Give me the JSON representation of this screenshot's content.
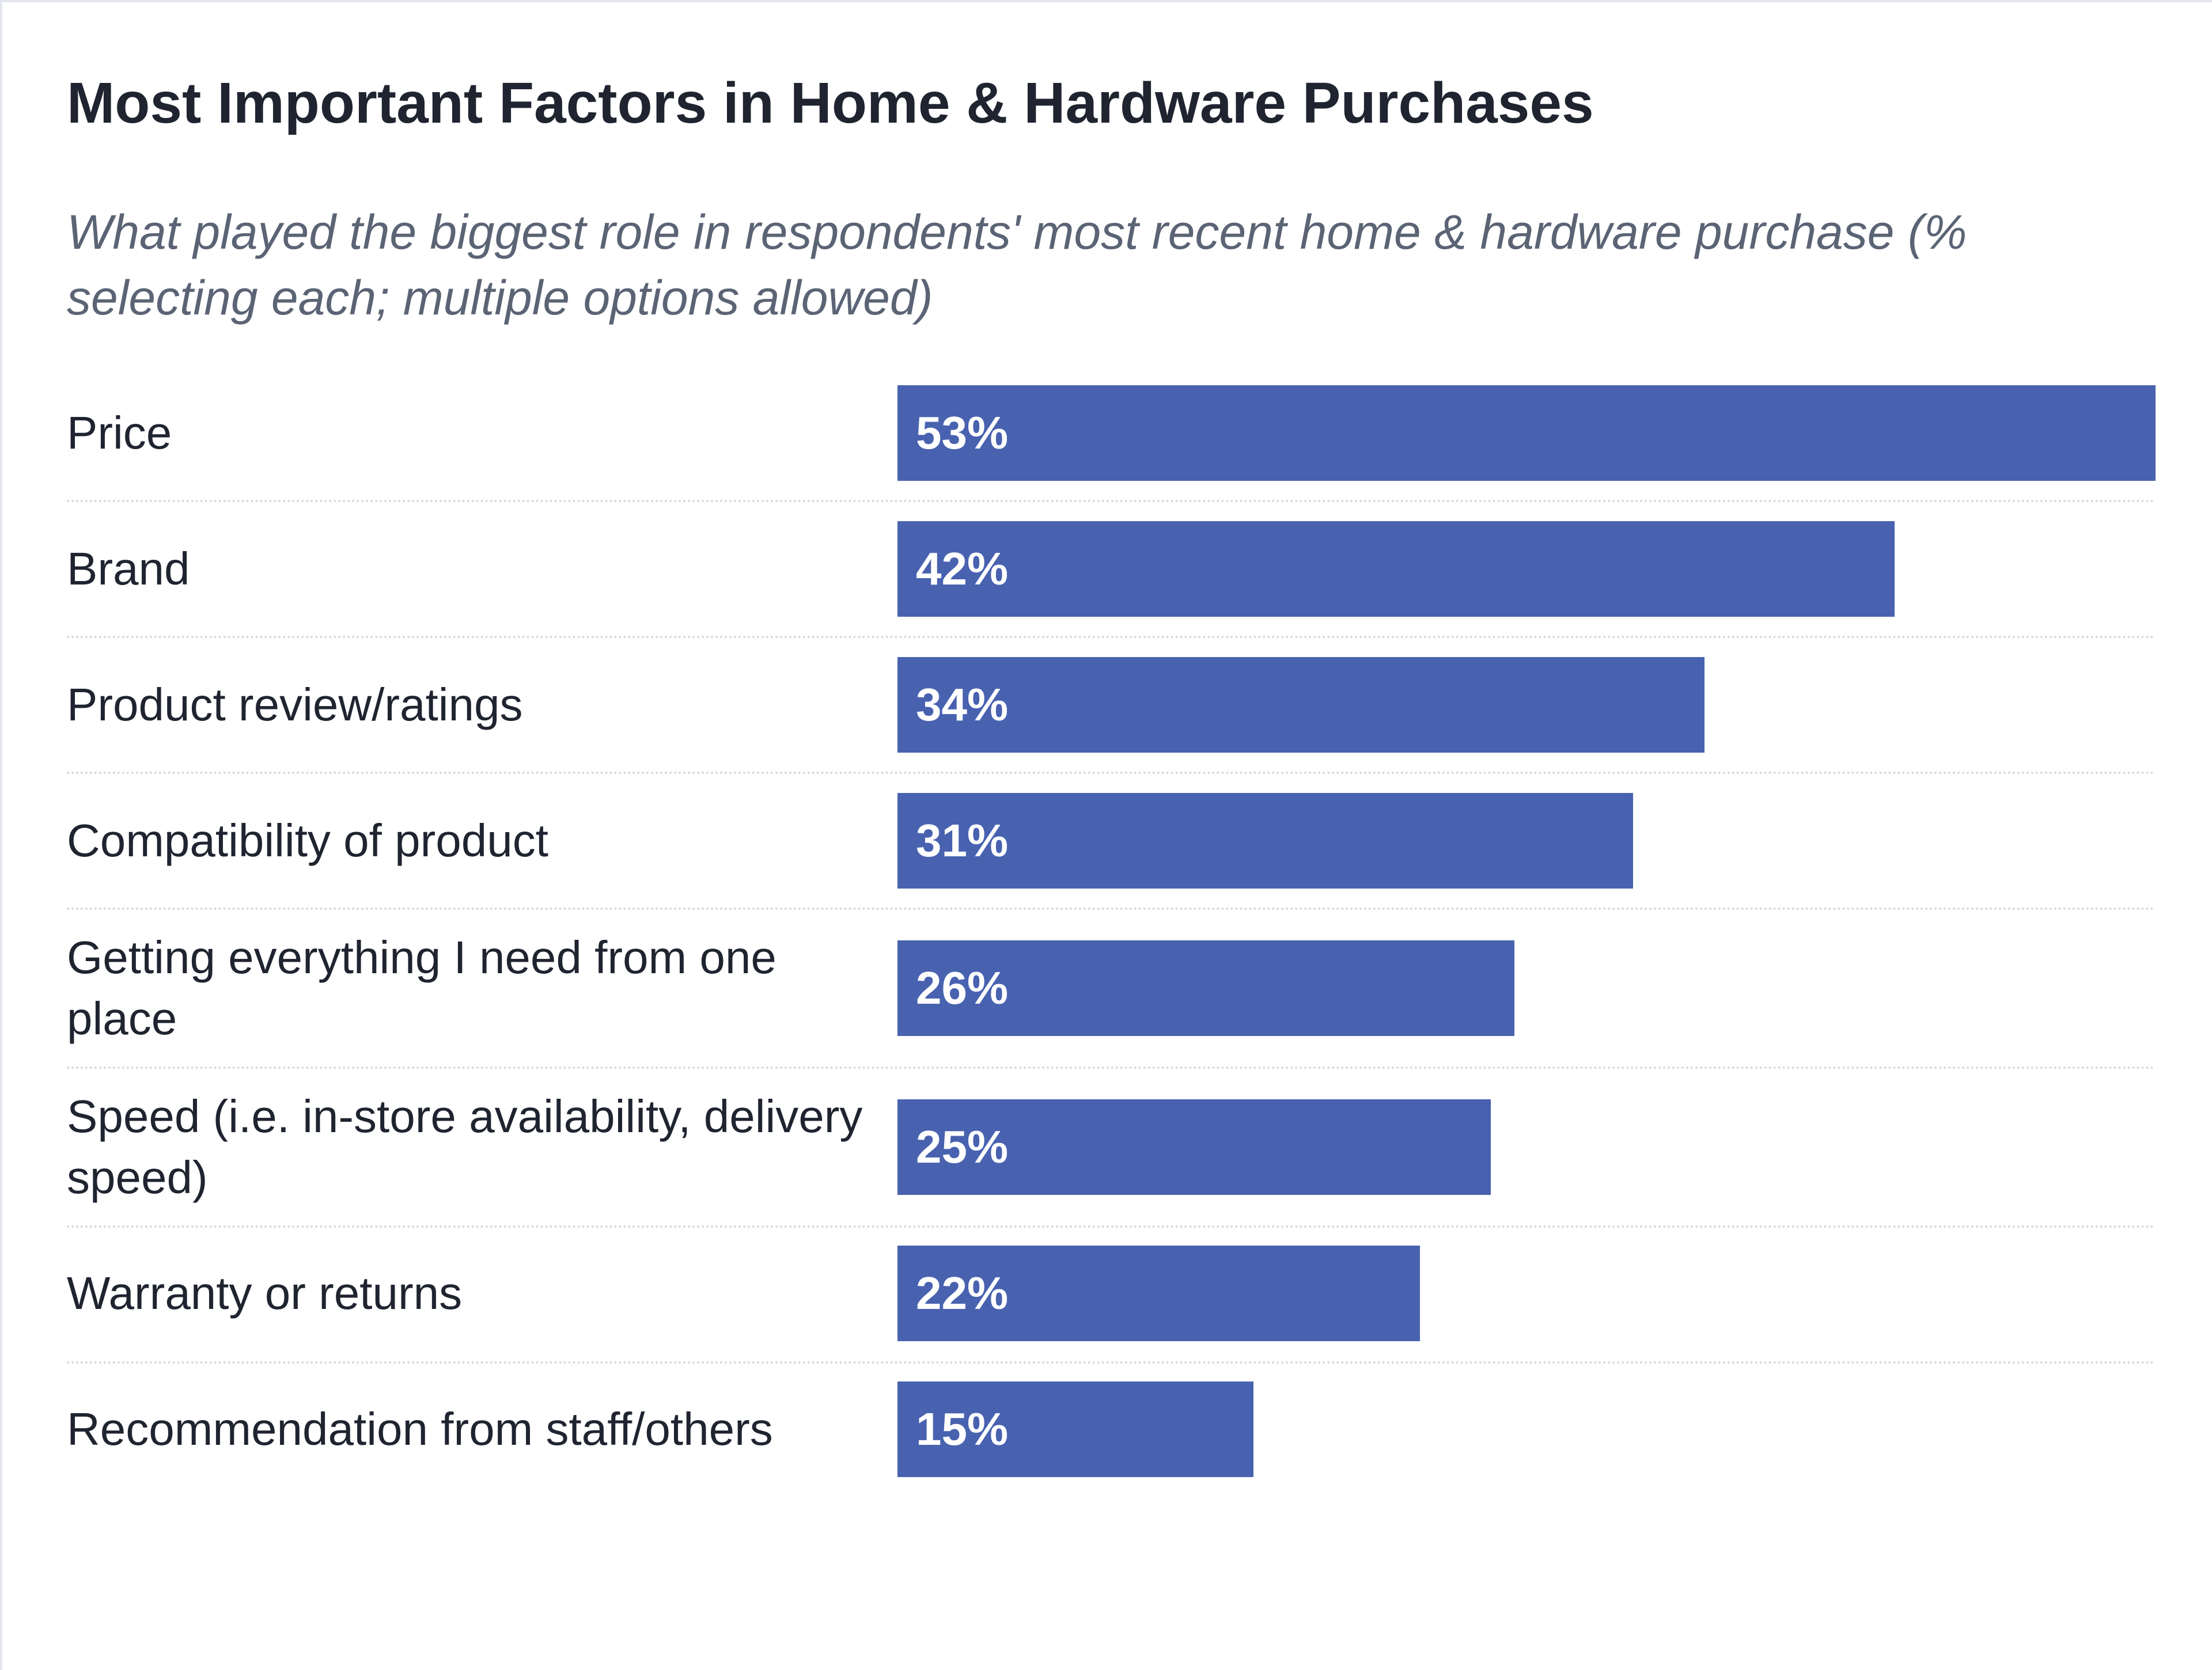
{
  "header": {
    "title": "Most Important Factors in Home & Hardware Purchases",
    "subtitle": "What played the biggest role in respondents' most recent home & hardware purchase (% selecting each; multiple options allowed)"
  },
  "colors": {
    "bar": "#4862b0",
    "bar_text": "#ffffff",
    "title": "#1f2430",
    "subtitle": "#5b6475",
    "divider": "#d6d9e0"
  },
  "chart_data": {
    "type": "bar",
    "orientation": "horizontal",
    "title": "Most Important Factors in Home & Hardware Purchases",
    "subtitle": "What played the biggest role in respondents' most recent home & hardware purchase (% selecting each; multiple options allowed)",
    "categories": [
      "Price",
      "Brand",
      "Product review/ratings",
      "Compatibility of product",
      "Getting everything I need from one place",
      "Speed (i.e. in-store availability, delivery speed)",
      "Warranty or returns",
      "Recommendation from staff/others"
    ],
    "values": [
      53,
      42,
      34,
      31,
      26,
      25,
      22,
      15
    ],
    "value_labels": [
      "53%",
      "42%",
      "34%",
      "31%",
      "26%",
      "25%",
      "22%",
      "15%"
    ],
    "unit": "%",
    "xlim": [
      0,
      53
    ],
    "grid": false,
    "legend": "none"
  }
}
